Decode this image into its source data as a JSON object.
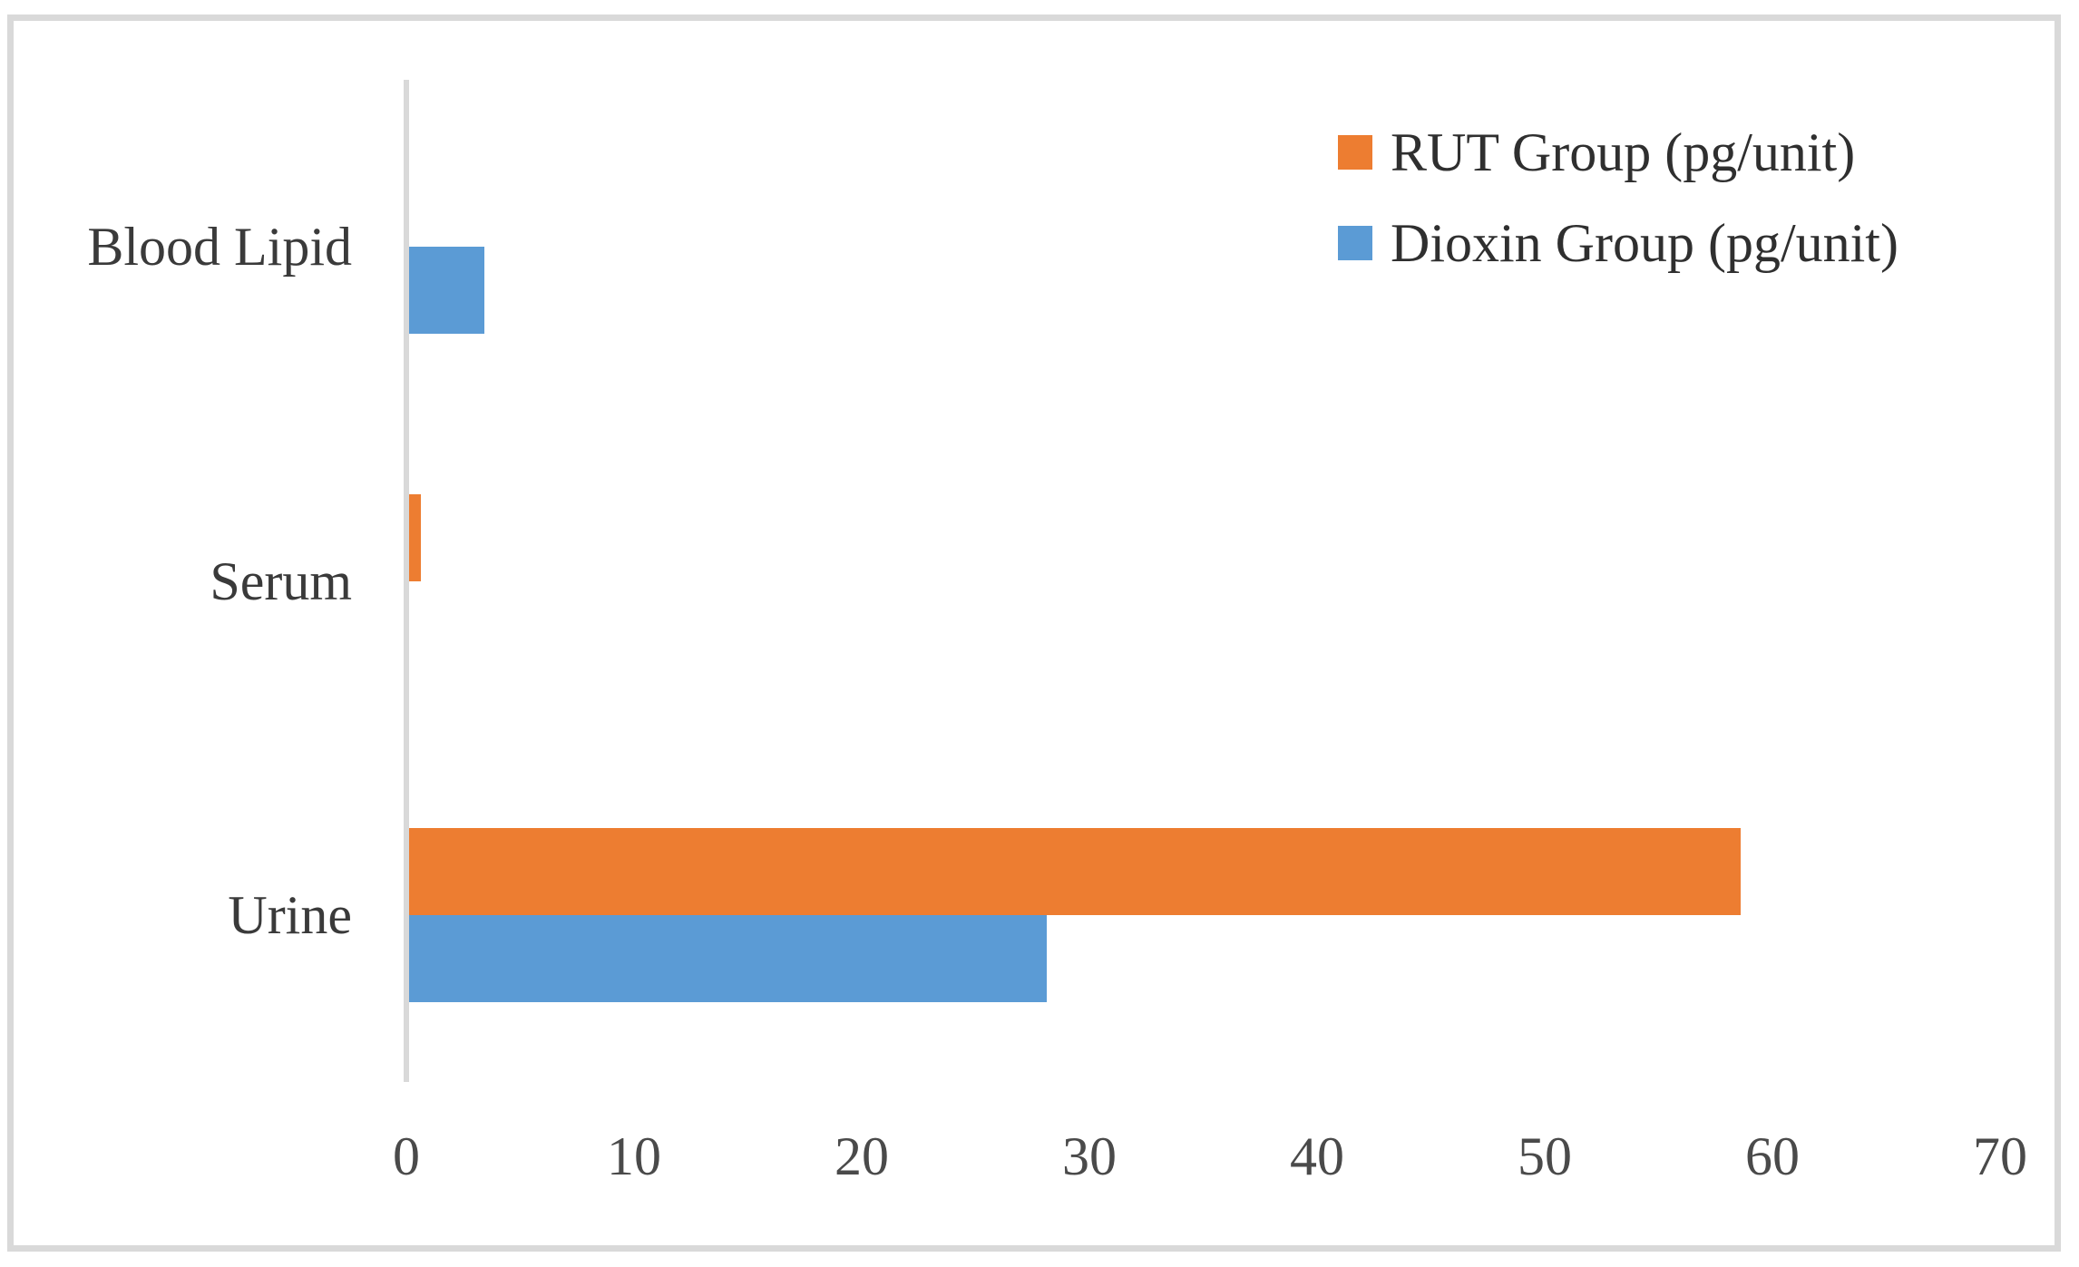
{
  "chart_data": {
    "type": "bar",
    "orientation": "horizontal",
    "title": "",
    "xlabel": "",
    "ylabel": "",
    "categories": [
      "Blood Lipid",
      "Serum",
      "Urine"
    ],
    "series": [
      {
        "name": "RUT Group (pg/unit)",
        "color": "#ED7D31",
        "values": [
          0,
          0.5,
          58.5
        ]
      },
      {
        "name": "Dioxin Group (pg/unit)",
        "color": "#5B9BD5",
        "values": [
          3.3,
          0,
          28
        ]
      }
    ],
    "xlim": [
      0,
      70
    ],
    "x_ticks": [
      "0",
      "10",
      "20",
      "30",
      "40",
      "50",
      "60",
      "70"
    ],
    "grid": false,
    "legend_position": "top-right"
  },
  "colors": {
    "frame_border": "#d9d9d9",
    "axis_line": "#d9d9d9",
    "label_text": "#3a3a3a",
    "background": "#ffffff"
  }
}
